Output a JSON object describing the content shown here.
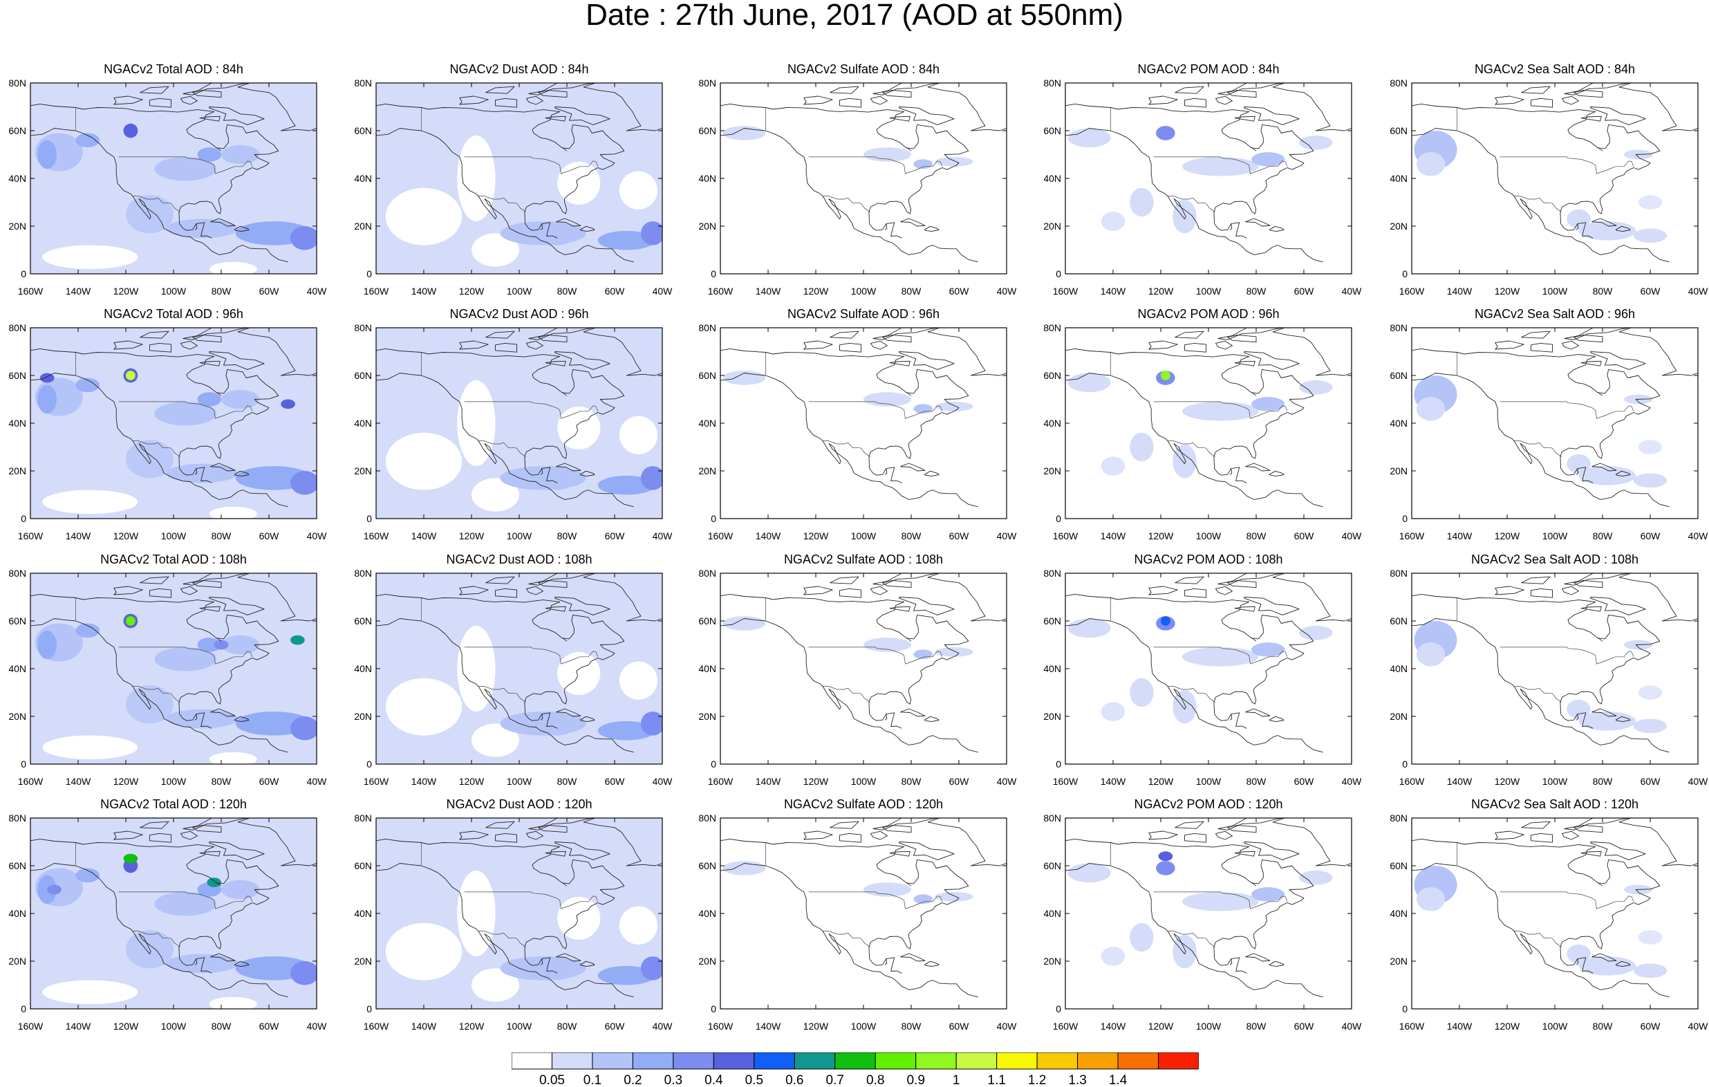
{
  "title": "Date : 27th June, 2017 (AOD at 550nm)",
  "rows": [
    {
      "panels": [
        {
          "title": "NGACv2 Total AOD : 84h",
          "species": "total"
        },
        {
          "title": "NGACv2 Dust AOD : 84h",
          "species": "dust"
        },
        {
          "title": "NGACv2 Sulfate AOD : 84h",
          "species": "sulfate"
        },
        {
          "title": "NGACv2 POM AOD : 84h",
          "species": "pom"
        },
        {
          "title": "NGACv2 Sea Salt AOD : 84h",
          "species": "seasalt"
        }
      ]
    },
    {
      "panels": [
        {
          "title": "NGACv2 Total AOD : 96h",
          "species": "total"
        },
        {
          "title": "NGACv2 Dust AOD : 96h",
          "species": "dust"
        },
        {
          "title": "NGACv2 Sulfate AOD : 96h",
          "species": "sulfate"
        },
        {
          "title": "NGACv2 POM AOD : 96h",
          "species": "pom"
        },
        {
          "title": "NGACv2 Sea Salt AOD : 96h",
          "species": "seasalt"
        }
      ]
    },
    {
      "panels": [
        {
          "title": "NGACv2 Total AOD : 108h",
          "species": "total"
        },
        {
          "title": "NGACv2 Dust AOD : 108h",
          "species": "dust"
        },
        {
          "title": "NGACv2 Sulfate AOD : 108h",
          "species": "sulfate"
        },
        {
          "title": "NGACv2 POM AOD : 108h",
          "species": "pom"
        },
        {
          "title": "NGACv2 Sea Salt AOD : 108h",
          "species": "seasalt"
        }
      ]
    },
    {
      "panels": [
        {
          "title": "NGACv2 Total AOD : 120h",
          "species": "total"
        },
        {
          "title": "NGACv2 Dust AOD : 120h",
          "species": "dust"
        },
        {
          "title": "NGACv2 Sulfate AOD : 120h",
          "species": "sulfate"
        },
        {
          "title": "NGACv2 POM AOD : 120h",
          "species": "pom"
        },
        {
          "title": "NGACv2 Sea Salt  AOD : 120h",
          "species": "seasalt"
        }
      ]
    }
  ],
  "x_ticks": [
    "160W",
    "140W",
    "120W",
    "100W",
    "80W",
    "60W",
    "40W"
  ],
  "y_ticks": [
    "0",
    "20N",
    "40N",
    "60N",
    "80N"
  ],
  "colorbar": {
    "levels": [
      "0.05",
      "0.1",
      "0.2",
      "0.3",
      "0.4",
      "0.5",
      "0.6",
      "0.7",
      "0.8",
      "0.9",
      "1",
      "1.1",
      "1.2",
      "1.3",
      "1.4"
    ],
    "colors": [
      "#ffffff",
      "#d4dcfa",
      "#b4c4f8",
      "#92acf6",
      "#7c8cf0",
      "#5860e0",
      "#1060f8",
      "#109890",
      "#10c010",
      "#60f000",
      "#90f820",
      "#c8f840",
      "#f8f800",
      "#f8c800",
      "#f8a000",
      "#f87000",
      "#f82000"
    ]
  }
}
